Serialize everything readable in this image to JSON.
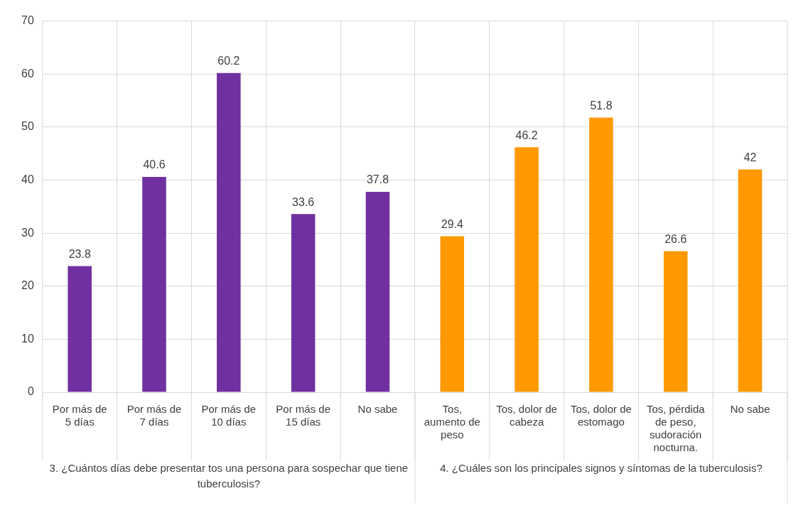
{
  "chart_data": {
    "type": "bar",
    "categories": [
      "Por más de 5 días",
      "Por más de 7 días",
      "Por más de 10 días",
      "Por más de 15 días",
      "No sabe",
      "Tos, aumento de peso",
      "Tos, dolor de cabeza",
      "Tos, dolor de estomago",
      "Tos, pérdida de peso, sudoración nocturna.",
      "No sabe"
    ],
    "values": [
      23.8,
      40.6,
      60.2,
      33.6,
      37.8,
      29.4,
      46.2,
      51.8,
      26.6,
      42
    ],
    "colors": [
      "#7030a0",
      "#7030a0",
      "#7030a0",
      "#7030a0",
      "#7030a0",
      "#ff9900",
      "#ff9900",
      "#ff9900",
      "#ff9900",
      "#ff9900"
    ],
    "ylim": [
      0,
      70
    ],
    "yticks": [
      0,
      10,
      20,
      30,
      40,
      50,
      60,
      70
    ],
    "grid": true,
    "data_labels": true,
    "legend": false,
    "annotations": [
      "3. ¿Cuántos días debe presentar tos una persona para sospechar que tiene tuberculosis?",
      "4. ¿Cuáles son los principales signos y síntomas de la tuberculosis?"
    ]
  }
}
